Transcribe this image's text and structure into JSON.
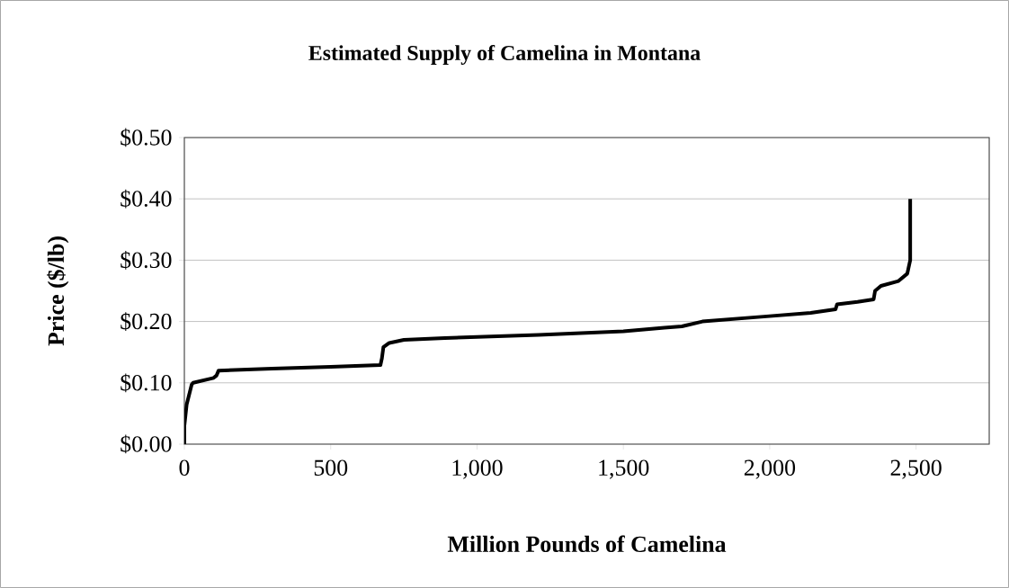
{
  "chart_data": {
    "type": "line",
    "title": "Estimated Supply of Camelina in Montana",
    "xlabel": "Million Pounds of Camelina",
    "ylabel": "Price ($/lb)",
    "x": [
      0,
      0,
      8,
      25,
      30,
      100,
      110,
      117,
      300,
      500,
      670,
      675,
      680,
      700,
      750,
      890,
      1210,
      1500,
      1640,
      1700,
      1770,
      1980,
      2140,
      2225,
      2230,
      2300,
      2355,
      2360,
      2380,
      2440,
      2470,
      2480,
      2480
    ],
    "series": [
      {
        "color": "#000000",
        "values": [
          0,
          0.03,
          0.065,
          0.097,
          0.1,
          0.108,
          0.112,
          0.12,
          0.123,
          0.126,
          0.129,
          0.14,
          0.158,
          0.165,
          0.17,
          0.173,
          0.178,
          0.184,
          0.19,
          0.192,
          0.2,
          0.208,
          0.214,
          0.22,
          0.228,
          0.232,
          0.236,
          0.25,
          0.258,
          0.266,
          0.278,
          0.3,
          0.4
        ]
      }
    ],
    "xlim": [
      0,
      2750
    ],
    "ylim": [
      0,
      0.5
    ],
    "xticks": [
      0,
      500,
      {
        "value": 1000,
        "label": "1,000"
      },
      {
        "value": 1500,
        "label": "1,500"
      },
      {
        "value": 2000,
        "label": "2,000"
      },
      {
        "value": 2500,
        "label": "2,500"
      }
    ],
    "yticks": [
      {
        "value": 0,
        "label": "$0.00"
      },
      {
        "value": 0.1,
        "label": "$0.10"
      },
      {
        "value": 0.2,
        "label": "$0.20"
      },
      {
        "value": 0.3,
        "label": "$0.30"
      },
      {
        "value": 0.4,
        "label": "$0.40"
      },
      {
        "value": 0.5,
        "label": "$0.50"
      }
    ],
    "grid": "y",
    "marker": "none",
    "line_style": "solid"
  }
}
